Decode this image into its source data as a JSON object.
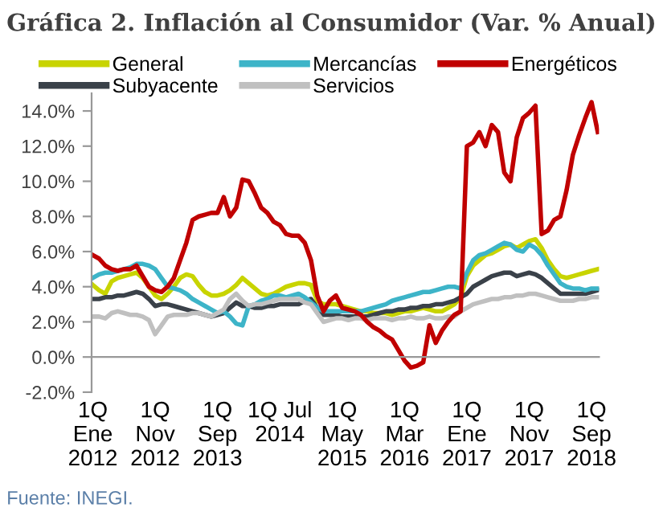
{
  "chart_data": {
    "type": "line",
    "title": "Gráfica 2. Inflación al Consumidor (Var. % Anual)",
    "categories": [
      "1Q\nEne\n2012",
      null,
      null,
      null,
      null,
      null,
      null,
      null,
      null,
      null,
      "1Q\nNov\n2012",
      null,
      null,
      null,
      null,
      null,
      null,
      null,
      null,
      null,
      "1Q\nSep\n2013",
      null,
      null,
      null,
      null,
      null,
      null,
      null,
      null,
      null,
      "1Q Jul\n2014",
      null,
      null,
      null,
      null,
      null,
      null,
      null,
      null,
      null,
      "1Q\nMay\n2015",
      null,
      null,
      null,
      null,
      null,
      null,
      null,
      null,
      null,
      "1Q\nMar\n2016",
      null,
      null,
      null,
      null,
      null,
      null,
      null,
      null,
      null,
      "1Q\nEne\n2017",
      null,
      null,
      null,
      null,
      null,
      null,
      null,
      null,
      null,
      "1Q\nNov\n2017",
      null,
      null,
      null,
      null,
      null,
      null,
      null,
      null,
      null,
      "1Q\nSep\n2018",
      null
    ],
    "series": [
      {
        "name": "General",
        "color": "#c8d400",
        "values": [
          4.1,
          3.8,
          3.6,
          4.3,
          4.5,
          4.6,
          4.7,
          4.8,
          4.5,
          4.0,
          3.5,
          3.3,
          3.6,
          4.0,
          4.5,
          4.7,
          4.6,
          4.1,
          3.7,
          3.5,
          3.5,
          3.6,
          3.8,
          4.1,
          4.5,
          4.2,
          3.9,
          3.6,
          3.5,
          3.6,
          3.8,
          4.0,
          4.1,
          4.2,
          4.2,
          4.1,
          3.2,
          3.0,
          3.0,
          3.0,
          2.9,
          2.8,
          2.7,
          2.6,
          2.6,
          2.5,
          2.5,
          2.5,
          2.4,
          2.5,
          2.6,
          2.6,
          2.7,
          2.8,
          2.7,
          2.6,
          2.6,
          2.8,
          3.0,
          3.4,
          4.6,
          5.2,
          5.5,
          5.8,
          5.9,
          6.1,
          6.3,
          6.4,
          6.2,
          6.4,
          6.6,
          6.7,
          6.2,
          5.5,
          5.0,
          4.6,
          4.5,
          4.6,
          4.7,
          4.8,
          4.9,
          5.0
        ]
      },
      {
        "name": "Subyacente",
        "color": "#3a4149",
        "values": [
          3.3,
          3.3,
          3.4,
          3.4,
          3.5,
          3.5,
          3.6,
          3.7,
          3.6,
          3.3,
          2.9,
          3.0,
          3.0,
          2.9,
          2.8,
          2.7,
          2.6,
          2.5,
          2.4,
          2.3,
          2.4,
          2.5,
          2.8,
          3.1,
          2.9,
          2.9,
          2.8,
          2.8,
          2.9,
          2.9,
          3.0,
          3.0,
          3.0,
          3.0,
          3.2,
          3.3,
          2.8,
          2.4,
          2.4,
          2.4,
          2.3,
          2.3,
          2.3,
          2.3,
          2.3,
          2.4,
          2.5,
          2.6,
          2.6,
          2.7,
          2.7,
          2.8,
          2.8,
          2.9,
          2.9,
          3.0,
          3.0,
          3.1,
          3.2,
          3.4,
          3.6,
          4.0,
          4.2,
          4.4,
          4.6,
          4.7,
          4.8,
          4.8,
          4.6,
          4.7,
          4.8,
          4.7,
          4.5,
          4.2,
          3.9,
          3.6,
          3.6,
          3.6,
          3.6,
          3.6,
          3.7,
          3.8
        ]
      },
      {
        "name": "Mercancías",
        "color": "#3db4c8",
        "values": [
          4.5,
          4.7,
          4.8,
          4.8,
          4.9,
          5.0,
          5.1,
          5.3,
          5.3,
          5.2,
          5.0,
          4.5,
          4.0,
          3.9,
          3.8,
          3.6,
          3.3,
          3.1,
          2.9,
          2.7,
          2.5,
          2.6,
          2.3,
          1.9,
          1.8,
          2.9,
          3.0,
          3.2,
          3.3,
          3.5,
          3.5,
          3.4,
          3.5,
          3.6,
          3.4,
          3.1,
          2.8,
          2.6,
          2.6,
          2.6,
          2.6,
          2.6,
          2.6,
          2.6,
          2.7,
          2.8,
          2.9,
          3.0,
          3.2,
          3.3,
          3.4,
          3.5,
          3.6,
          3.7,
          3.7,
          3.8,
          3.9,
          4.0,
          4.0,
          3.9,
          4.8,
          5.5,
          5.8,
          5.9,
          6.1,
          6.3,
          6.5,
          6.4,
          6.1,
          6.0,
          6.4,
          6.2,
          5.8,
          5.2,
          4.7,
          4.2,
          4.0,
          3.9,
          3.9,
          3.8,
          3.9,
          3.9
        ]
      },
      {
        "name": "Servicios",
        "color": "#c0c0c0",
        "values": [
          2.3,
          2.3,
          2.2,
          2.5,
          2.6,
          2.5,
          2.4,
          2.4,
          2.3,
          2.1,
          1.3,
          1.8,
          2.3,
          2.4,
          2.4,
          2.4,
          2.5,
          2.5,
          2.4,
          2.3,
          2.5,
          2.7,
          3.3,
          3.6,
          3.2,
          2.9,
          3.0,
          3.0,
          3.1,
          3.2,
          3.3,
          3.3,
          3.3,
          3.3,
          3.1,
          3.0,
          2.5,
          2.0,
          2.1,
          2.2,
          2.2,
          2.1,
          2.2,
          2.2,
          2.1,
          2.2,
          2.2,
          2.2,
          2.1,
          2.2,
          2.2,
          2.3,
          2.2,
          2.2,
          2.3,
          2.2,
          2.2,
          2.3,
          2.3,
          2.6,
          2.8,
          3.0,
          3.1,
          3.2,
          3.3,
          3.3,
          3.4,
          3.4,
          3.5,
          3.5,
          3.6,
          3.6,
          3.5,
          3.4,
          3.3,
          3.2,
          3.2,
          3.2,
          3.3,
          3.3,
          3.4,
          3.4
        ]
      },
      {
        "name": "Energéticos",
        "color": "#c00000",
        "values": [
          5.8,
          5.6,
          5.2,
          5.0,
          4.9,
          5.0,
          5.0,
          5.2,
          4.6,
          4.0,
          3.8,
          3.7,
          4.0,
          4.5,
          5.5,
          6.5,
          7.8,
          8.0,
          8.1,
          8.2,
          8.2,
          9.1,
          8.0,
          8.5,
          10.1,
          10.0,
          9.3,
          8.5,
          8.2,
          7.7,
          7.5,
          7.0,
          6.9,
          6.9,
          6.5,
          5.5,
          3.5,
          2.6,
          3.2,
          3.5,
          2.8,
          2.7,
          2.6,
          2.4,
          2.0,
          1.7,
          1.5,
          1.2,
          1.0,
          0.4,
          -0.2,
          -0.6,
          -0.5,
          -0.3,
          1.8,
          0.8,
          1.5,
          2.0,
          2.4,
          2.6,
          12.0,
          12.2,
          12.8,
          12.0,
          13.2,
          12.8,
          10.5,
          10.0,
          12.5,
          13.6,
          13.9,
          14.3,
          7.0,
          7.2,
          7.8,
          8.0,
          9.5,
          11.5,
          12.6,
          13.6,
          14.5,
          12.8
        ]
      }
    ],
    "ylim": [
      -2,
      15
    ],
    "yticks": [
      {
        "value": -2,
        "label": "-2.0%"
      },
      {
        "value": 0,
        "label": "0.0%"
      },
      {
        "value": 2,
        "label": "2.0%"
      },
      {
        "value": 4,
        "label": "4.0%"
      },
      {
        "value": 6,
        "label": "6.0%"
      },
      {
        "value": 8,
        "label": "8.0%"
      },
      {
        "value": 10,
        "label": "10.0%"
      },
      {
        "value": 12,
        "label": "12.0%"
      },
      {
        "value": 14,
        "label": "14.0%"
      }
    ],
    "grid": false,
    "legend": "top",
    "marker": "none",
    "line_style": "solid",
    "annotations": [
      "Fuente: INEGI."
    ]
  }
}
